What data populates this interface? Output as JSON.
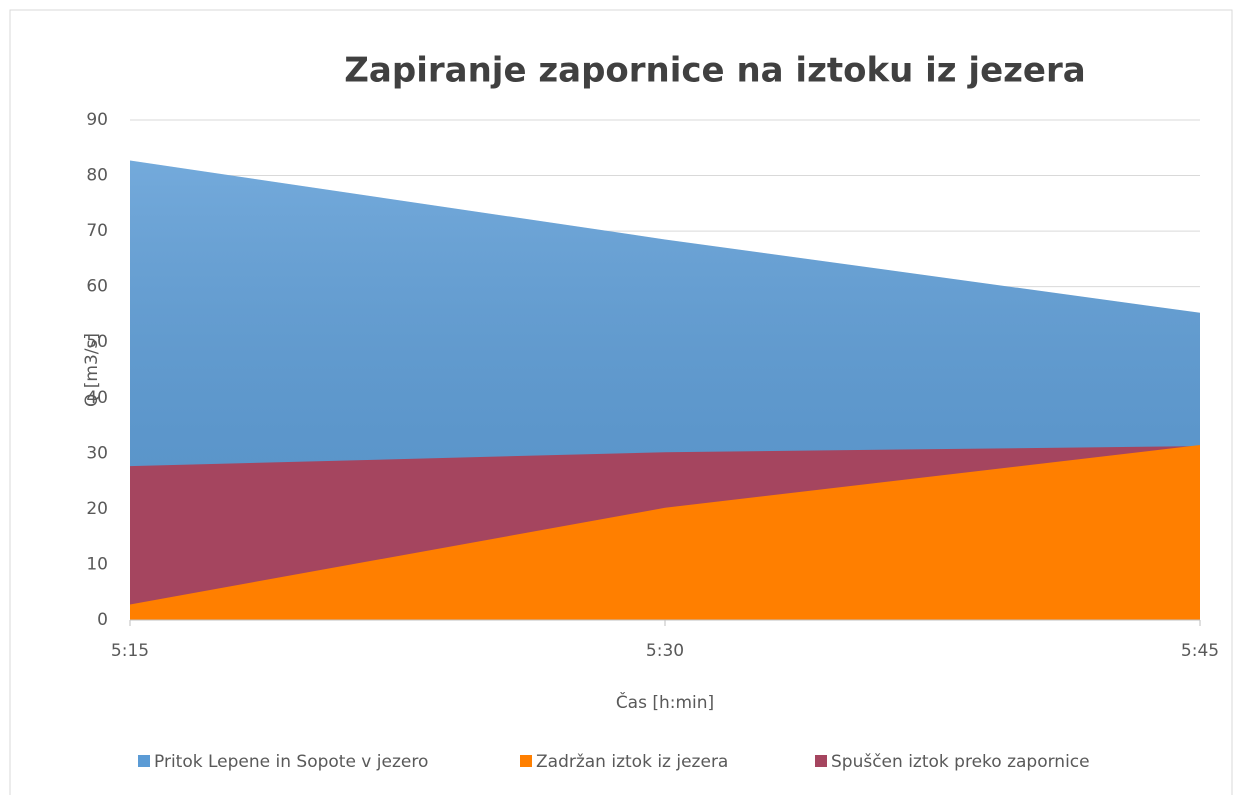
{
  "chart_data": {
    "type": "area",
    "title": "Zapiranje zapornice na iztoku iz jezera",
    "x_label": "Čas [h:min]",
    "y_label": "Q [m3/s]",
    "categories": [
      "5:15",
      "5:30",
      "5:45"
    ],
    "series": [
      {
        "name": "Pritok Lepene in Sopote v jezero",
        "color": "#5b9bd5",
        "values": [
          82.7,
          68.5,
          55.3
        ]
      },
      {
        "name": "Zadržan iztok iz jezera",
        "color": "#ff7f00",
        "values": [
          2.8,
          20.2,
          31.5
        ]
      },
      {
        "name": "Spuščen iztok preko zapornice",
        "color": "#a5455f",
        "values": [
          27.7,
          30.2,
          31.3
        ]
      }
    ],
    "ylim": [
      0,
      90
    ],
    "yticks": [
      0,
      10,
      20,
      30,
      40,
      50,
      60,
      70,
      80,
      90
    ],
    "grid": true
  }
}
